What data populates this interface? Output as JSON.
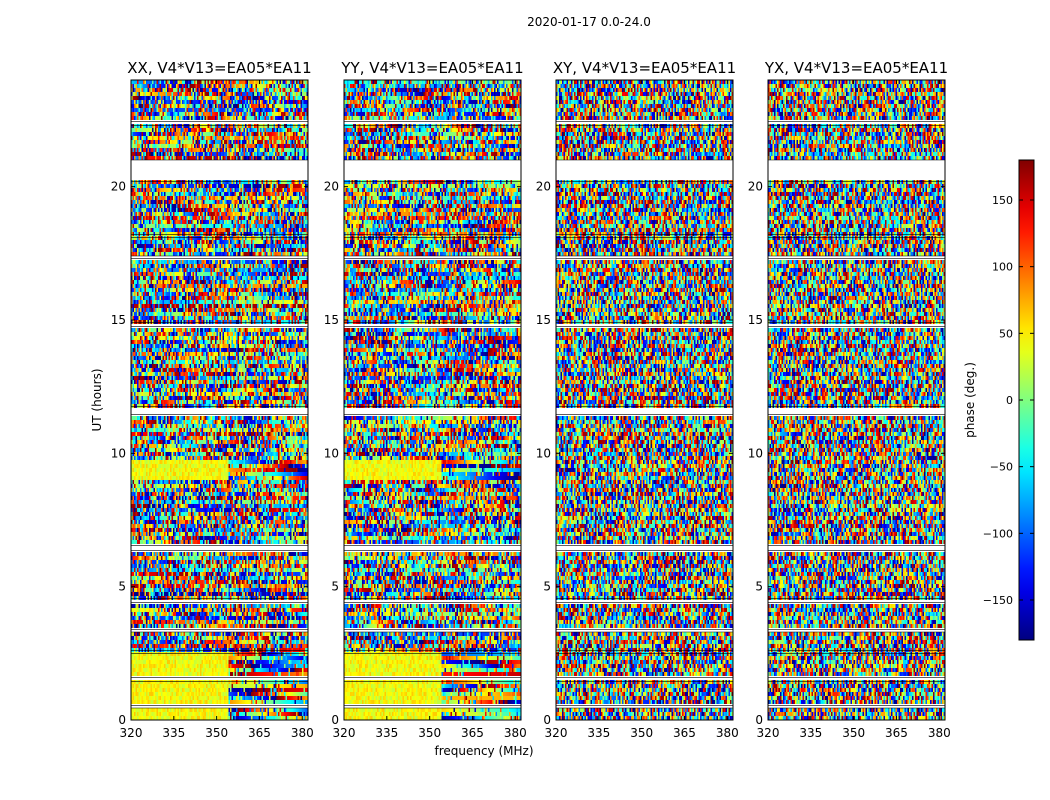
{
  "chart_data": {
    "type": "heatmap",
    "suptitle": "2020-01-17 0.0-24.0",
    "panels": [
      {
        "title": "XX, V4*V13=EA05*EA11",
        "correlation": "XX"
      },
      {
        "title": "YY, V4*V13=EA05*EA11",
        "correlation": "YY"
      },
      {
        "title": "XY, V4*V13=EA05*EA11",
        "correlation": "XY"
      },
      {
        "title": "YX, V4*V13=EA05*EA11",
        "correlation": "YX"
      }
    ],
    "xlabel": "frequency (MHz)",
    "ylabel": "UT (hours)",
    "xlim": [
      320,
      382
    ],
    "ylim": [
      0,
      24
    ],
    "xticks": [
      320,
      335,
      350,
      365,
      380
    ],
    "yticks": [
      0,
      5,
      10,
      15,
      20
    ],
    "colorbar": {
      "label": "phase (deg.)",
      "range": [
        -180,
        180
      ],
      "ticks": [
        -150,
        -100,
        -50,
        0,
        50,
        100,
        150
      ],
      "tick_labels": [
        "−150",
        "−100",
        "−50",
        "0",
        "50",
        "100",
        "150"
      ],
      "colormap": "jet"
    },
    "flagged_gaps_hours": [
      [
        0.45,
        0.55
      ],
      [
        1.45,
        1.6
      ],
      [
        2.5,
        2.6
      ],
      [
        3.3,
        3.4
      ],
      [
        4.4,
        4.55
      ],
      [
        6.35,
        6.55
      ],
      [
        11.45,
        11.75
      ],
      [
        14.75,
        14.9
      ],
      [
        17.3,
        17.4
      ],
      [
        18.1,
        18.2
      ],
      [
        20.2,
        21.0
      ],
      [
        22.3,
        22.45
      ]
    ]
  }
}
